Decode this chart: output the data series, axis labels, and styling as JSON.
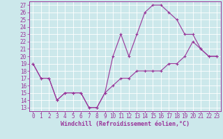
{
  "xlabel": "Windchill (Refroidissement éolien,°C)",
  "bg_color": "#cce8eb",
  "line_color": "#993399",
  "grid_color": "#ffffff",
  "xlim": [
    -0.5,
    23.5
  ],
  "ylim": [
    12.5,
    27.5
  ],
  "yticks": [
    13,
    14,
    15,
    16,
    17,
    18,
    19,
    20,
    21,
    22,
    23,
    24,
    25,
    26,
    27
  ],
  "xticks": [
    0,
    1,
    2,
    3,
    4,
    5,
    6,
    7,
    8,
    9,
    10,
    11,
    12,
    13,
    14,
    15,
    16,
    17,
    18,
    19,
    20,
    21,
    22,
    23
  ],
  "line1_x": [
    0,
    1,
    2,
    3,
    4,
    5,
    6,
    7,
    8,
    9,
    10,
    11,
    12,
    13,
    14,
    15,
    16,
    17,
    18,
    19,
    20,
    21,
    22,
    23
  ],
  "line1_y": [
    19,
    17,
    17,
    14,
    15,
    15,
    15,
    13,
    13,
    15,
    20,
    23,
    20,
    23,
    26,
    27,
    27,
    26,
    25,
    23,
    23,
    21,
    20,
    20
  ],
  "line2_x": [
    0,
    1,
    2,
    3,
    4,
    5,
    6,
    7,
    8,
    9,
    10,
    11,
    12,
    13,
    14,
    15,
    16,
    17,
    18,
    19,
    20,
    21,
    22,
    23
  ],
  "line2_y": [
    19,
    17,
    17,
    14,
    15,
    15,
    15,
    13,
    13,
    15,
    16,
    17,
    17,
    18,
    18,
    18,
    18,
    19,
    19,
    20,
    22,
    21,
    20,
    20
  ],
  "tick_fontsize": 5.5,
  "xlabel_fontsize": 6.0
}
